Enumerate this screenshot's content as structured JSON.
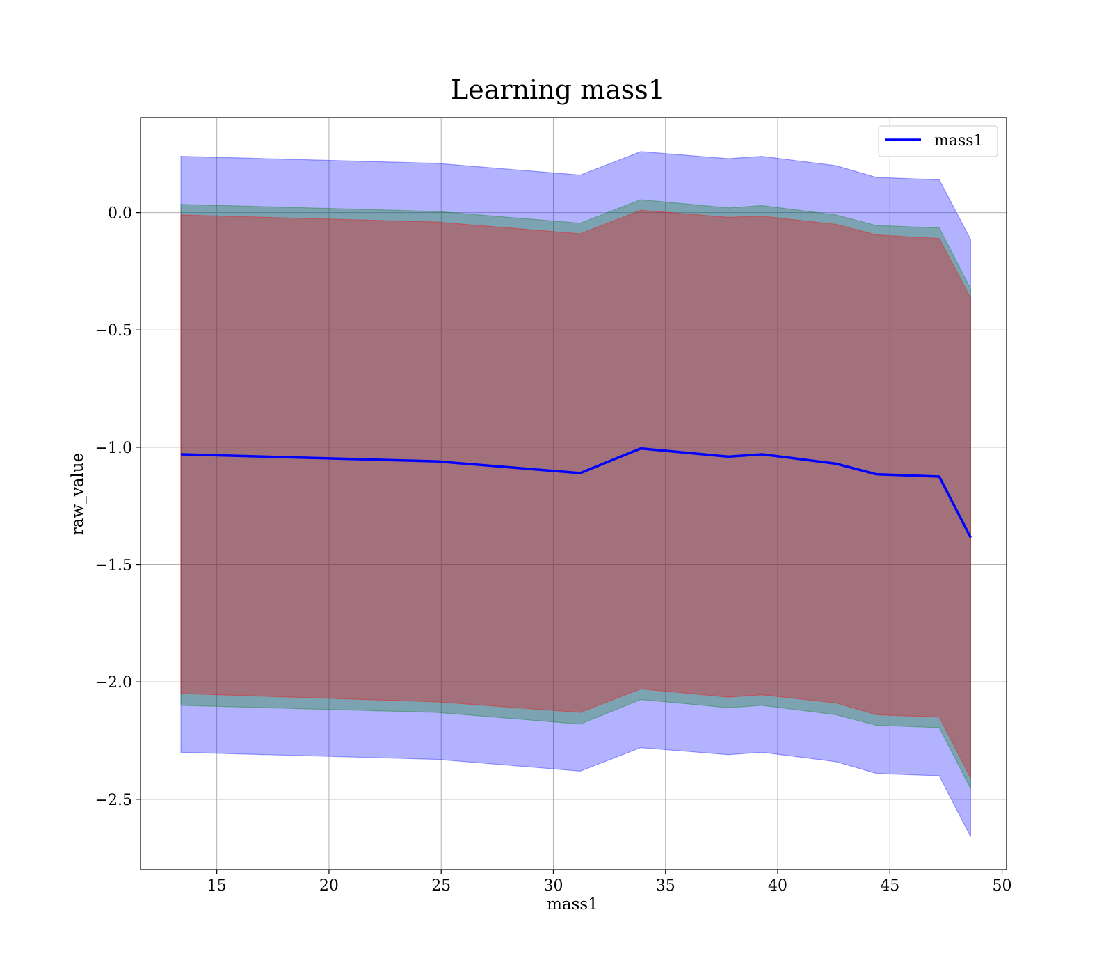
{
  "chart_data": {
    "type": "area",
    "title": "Learning mass1",
    "xlabel": "mass1",
    "ylabel": "raw_value",
    "xlim": [
      11.6,
      50.2
    ],
    "ylim": [
      -2.8,
      0.405
    ],
    "xticks": [
      15,
      20,
      25,
      30,
      35,
      40,
      45,
      50
    ],
    "yticks": [
      0.0,
      -0.5,
      -1.0,
      -1.5,
      -2.0,
      -2.5
    ],
    "ytick_labels": [
      "0.0",
      "−0.5",
      "−1.0",
      "−1.5",
      "−2.0",
      "−2.5"
    ],
    "grid": true,
    "legend_position": "top-right",
    "x": [
      13.4,
      24.8,
      31.2,
      33.9,
      37.8,
      39.3,
      42.6,
      44.4,
      47.2,
      48.6
    ],
    "series": [
      {
        "name": "mass1",
        "color": "#0000ff",
        "values": [
          -1.03,
          -1.06,
          -1.11,
          -1.005,
          -1.04,
          -1.03,
          -1.07,
          -1.115,
          -1.125,
          -1.385
        ]
      }
    ],
    "bands": [
      {
        "color": "#0000ff",
        "opacity": 0.3,
        "lower": [
          -2.3,
          -2.33,
          -2.38,
          -2.28,
          -2.31,
          -2.3,
          -2.34,
          -2.39,
          -2.4,
          -2.66
        ],
        "upper": [
          0.24,
          0.21,
          0.16,
          0.26,
          0.23,
          0.24,
          0.2,
          0.15,
          0.14,
          -0.115
        ]
      },
      {
        "color": "#008000",
        "opacity": 0.3,
        "lower": [
          -2.1,
          -2.13,
          -2.18,
          -2.075,
          -2.11,
          -2.1,
          -2.14,
          -2.185,
          -2.195,
          -2.455
        ],
        "upper": [
          0.035,
          0.005,
          -0.045,
          0.055,
          0.02,
          0.03,
          -0.01,
          -0.055,
          -0.065,
          -0.325
        ]
      },
      {
        "color": "#ff0000",
        "opacity": 0.3,
        "lower": [
          -2.05,
          -2.085,
          -2.13,
          -2.03,
          -2.065,
          -2.055,
          -2.09,
          -2.14,
          -2.15,
          -2.41
        ],
        "upper": [
          -0.01,
          -0.04,
          -0.09,
          0.01,
          -0.02,
          -0.015,
          -0.05,
          -0.095,
          -0.11,
          -0.365
        ]
      }
    ]
  }
}
